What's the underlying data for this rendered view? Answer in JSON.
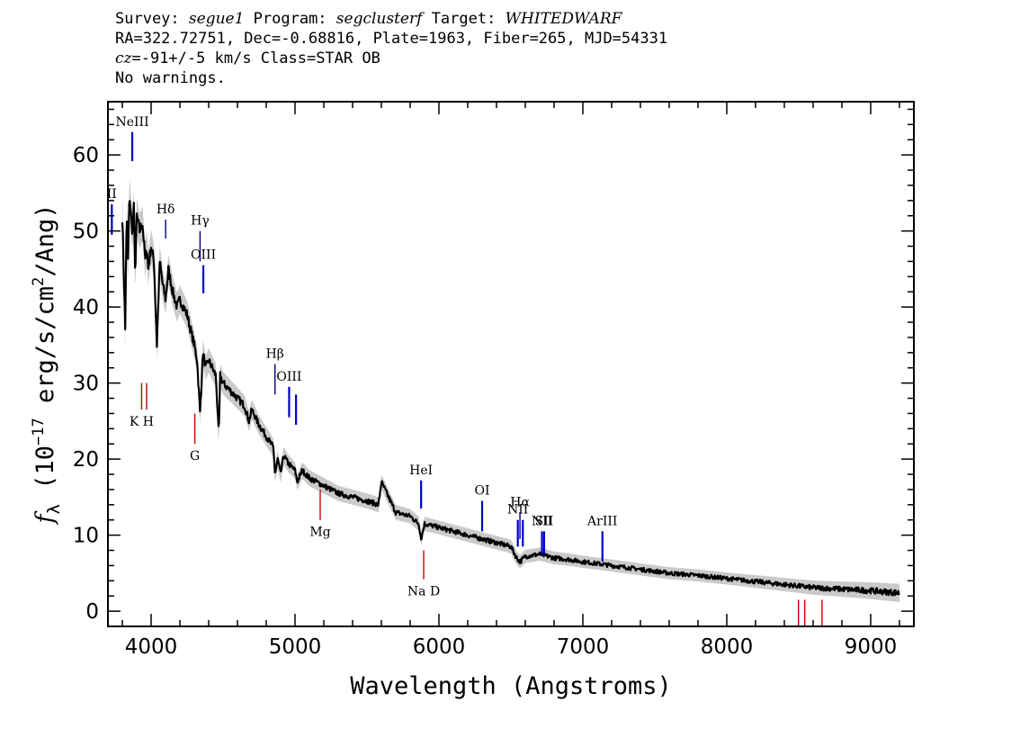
{
  "header": {
    "survey_key": "Survey:",
    "survey": "segue1",
    "program_key": "Program:",
    "program": "segclusterf",
    "target_key": "Target:",
    "target": "WHITEDWARF",
    "line2": "RA=322.72751, Dec=-0.68816, Plate=1963, Fiber=265, MJD=54331",
    "cz_key": "cz",
    "cz_value": "=-91+/-5",
    "cz_rest": " km/s Class=STAR OB",
    "warnings": "No warnings."
  },
  "chart_data": {
    "type": "line",
    "xlabel": "Wavelength (Angstroms)",
    "ylabel": "f_λ (10^-17 erg/s/cm^2/Ang)",
    "ylabel_parts": [
      "f",
      "λ",
      " (10",
      "−17",
      " erg/s/cm",
      "2",
      "/Ang)"
    ],
    "xlim": [
      3700,
      9300
    ],
    "ylim": [
      -2,
      67
    ],
    "xticks": [
      4000,
      5000,
      6000,
      7000,
      8000,
      9000
    ],
    "yticks": [
      0,
      10,
      20,
      30,
      40,
      50,
      60
    ],
    "series": [
      {
        "style": "flux",
        "color": "#000000",
        "x": [
          3800,
          3820,
          3830,
          3840,
          3850,
          3860,
          3870,
          3880,
          3890,
          3900,
          3920,
          3940,
          3960,
          3970,
          3980,
          4000,
          4020,
          4040,
          4060,
          4080,
          4101,
          4120,
          4150,
          4180,
          4200,
          4250,
          4300,
          4320,
          4340,
          4360,
          4380,
          4400,
          4450,
          4470,
          4480,
          4500,
          4550,
          4600,
          4650,
          4680,
          4700,
          4750,
          4800,
          4850,
          4861,
          4880,
          4900,
          4921,
          4950,
          5000,
          5016,
          5050,
          5100,
          5200,
          5300,
          5400,
          5500,
          5580,
          5600,
          5700,
          5800,
          5860,
          5876,
          5900,
          6000,
          6100,
          6200,
          6300,
          6400,
          6500,
          6540,
          6563,
          6600,
          6700,
          6800,
          6900,
          7000,
          7200,
          7400,
          7600,
          7800,
          8000,
          8200,
          8400,
          8600,
          8800,
          9000,
          9200
        ],
        "y": [
          52,
          37,
          52,
          46,
          55,
          52,
          50,
          53,
          44,
          52,
          50,
          51,
          46,
          48,
          45,
          48,
          46,
          35,
          46,
          43,
          41,
          45,
          42,
          40,
          41,
          39,
          35,
          33,
          26,
          34,
          32,
          33,
          31,
          23,
          31,
          30,
          29,
          28,
          27,
          25,
          26.5,
          24.5,
          23,
          21.5,
          18,
          20,
          18,
          20.5,
          19.5,
          18.5,
          17,
          18.5,
          17.5,
          16.5,
          15.5,
          15,
          14.5,
          14,
          17,
          13,
          12.5,
          11.5,
          9.5,
          11.5,
          11,
          10.5,
          10,
          9.5,
          9,
          8.5,
          7,
          6.5,
          7.2,
          7.5,
          7,
          6.8,
          6.5,
          6,
          5.5,
          5,
          4.7,
          4.3,
          3.9,
          3.5,
          3.1,
          2.9,
          2.7,
          2.4
        ]
      },
      {
        "style": "error",
        "color": "#b8b8b8",
        "x": [
          3850,
          4100,
          4400,
          4700,
          5000,
          5300,
          5600,
          6000,
          6500,
          7000,
          7500,
          8000,
          8500,
          8800,
          9000,
          9200
        ],
        "y": [
          2.5,
          2.0,
          1.6,
          1.3,
          1.1,
          1.0,
          1.0,
          0.9,
          0.9,
          0.8,
          0.8,
          0.8,
          0.9,
          1.0,
          1.1,
          1.2
        ]
      }
    ],
    "emission_lines": [
      {
        "label": "NeIII",
        "x": 3869,
        "ytop": 63,
        "ybot": 59.2,
        "color": "#0000cc"
      },
      {
        "label": "II",
        "x": 3727,
        "ytop": 53.5,
        "ybot": 49.5,
        "color": "#0000cc"
      },
      {
        "label": "Hδ",
        "x": 4101,
        "ytop": 51.5,
        "ybot": 49,
        "color": "#000080"
      },
      {
        "label": "Hγ",
        "x": 4340,
        "ytop": 50,
        "ybot": 46,
        "color": "#000080"
      },
      {
        "label": "OIII",
        "x": 4363,
        "ytop": 45.5,
        "ybot": 41.8,
        "color": "#0000cc"
      },
      {
        "label": "Hβ",
        "x": 4861,
        "ytop": 32.5,
        "ybot": 28.5,
        "color": "#000080"
      },
      {
        "label": "OIII",
        "x": 4959,
        "ytop": 29.5,
        "ybot": 25.5,
        "color": "#0000cc"
      },
      {
        "label": "",
        "x": 5007,
        "ytop": 28.5,
        "ybot": 24.5,
        "color": "#0000cc"
      },
      {
        "label": "HeI",
        "x": 5876,
        "ytop": 17.2,
        "ybot": 13.5,
        "color": "#0000cc"
      },
      {
        "label": "OI",
        "x": 6300,
        "ytop": 14.5,
        "ybot": 10.5,
        "color": "#0000cc"
      },
      {
        "label": "NII",
        "x": 6548,
        "ytop": 12,
        "ybot": 8.5,
        "color": "#0000cc"
      },
      {
        "label": "Hα",
        "x": 6563,
        "ytop": 13,
        "ybot": 9.5,
        "color": "#000080"
      },
      {
        "label": "",
        "x": 6583,
        "ytop": 12,
        "ybot": 8.5,
        "color": "#0000cc"
      },
      {
        "label": "NII",
        "x": 6716,
        "ytop": 10.5,
        "ybot": 7.5,
        "color": "#0000cc"
      },
      {
        "label": "SII",
        "x": 6731,
        "ytop": 10.5,
        "ybot": 7.5,
        "color": "#0000cc"
      },
      {
        "label": "ArIII",
        "x": 7136,
        "ytop": 10.5,
        "ybot": 6.5,
        "color": "#0000cc"
      }
    ],
    "absorption_lines": [
      {
        "label": "K H",
        "x": 3934,
        "ytop": 30,
        "ybot": 26.5,
        "color": "#cc0000"
      },
      {
        "label": "",
        "x": 3969,
        "ytop": 30,
        "ybot": 26.5,
        "color": "#cc0000"
      },
      {
        "label": "G",
        "x": 4304,
        "ytop": 26,
        "ybot": 22,
        "color": "#cc0000"
      },
      {
        "label": "Mg",
        "x": 5175,
        "ytop": 16,
        "ybot": 12,
        "color": "#cc0000"
      },
      {
        "label": "Na D",
        "x": 5894,
        "ytop": 8,
        "ybot": 4.2,
        "color": "#cc0000"
      },
      {
        "label": "",
        "x": 8498,
        "ytop": 1.5,
        "ybot": -2,
        "color": "#cc0000"
      },
      {
        "label": "",
        "x": 8542,
        "ytop": 1.5,
        "ybot": -2,
        "color": "#cc0000"
      },
      {
        "label": "",
        "x": 8662,
        "ytop": 1.5,
        "ybot": -2,
        "color": "#cc0000"
      }
    ]
  }
}
